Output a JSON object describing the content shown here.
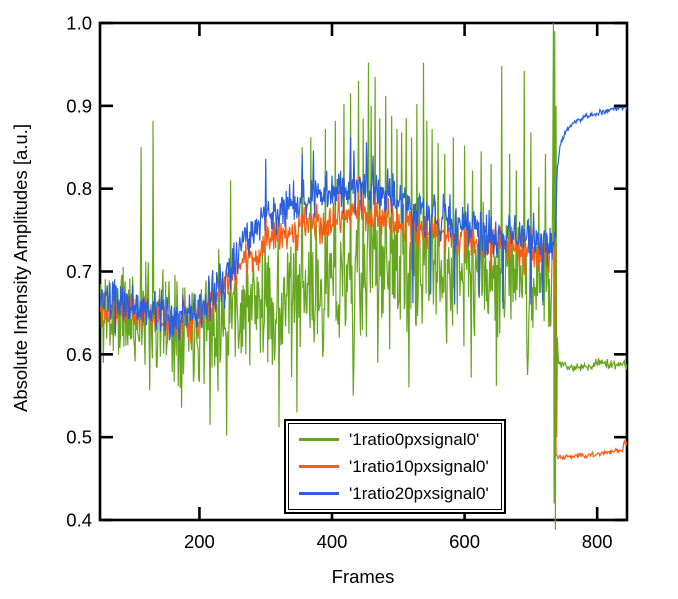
{
  "figure": {
    "background": "#ffffff",
    "axis_color": "#000000"
  },
  "chart_data": {
    "type": "line",
    "title": "",
    "xlabel": "Frames",
    "ylabel": "Absolute Intensity Amplitudes [a.u.]",
    "xlim": [
      50,
      845
    ],
    "ylim": [
      0.4,
      1.0
    ],
    "x_ticks": [
      200,
      400,
      600,
      800
    ],
    "x_tick_labels": [
      "200",
      "400",
      "600",
      "800"
    ],
    "y_ticks": [
      1.0,
      0.9,
      0.8,
      0.7,
      0.6,
      0.5,
      0.4
    ],
    "y_tick_labels": [
      "1.0",
      "0.9",
      "0.8",
      "0.7",
      "0.6",
      "0.5",
      "0.4"
    ],
    "grid": false,
    "legend": {
      "position": "inside-bottom-center",
      "frame": "double-box"
    },
    "sample_step": 1,
    "series": [
      {
        "name": "'1ratio0pxsignal0'",
        "color": "#66A61E",
        "line_width": 1.2,
        "seed": 11,
        "mean_anchors": [
          [
            50,
            0.652
          ],
          [
            100,
            0.645
          ],
          [
            150,
            0.64
          ],
          [
            200,
            0.643
          ],
          [
            250,
            0.652
          ],
          [
            300,
            0.66
          ],
          [
            350,
            0.668
          ],
          [
            400,
            0.68
          ],
          [
            430,
            0.69
          ],
          [
            460,
            0.7
          ],
          [
            490,
            0.702
          ],
          [
            530,
            0.698
          ],
          [
            570,
            0.697
          ],
          [
            610,
            0.698
          ],
          [
            650,
            0.694
          ],
          [
            690,
            0.69
          ],
          [
            720,
            0.686
          ],
          [
            732,
            0.685
          ],
          [
            741,
            0.59
          ],
          [
            750,
            0.586
          ],
          [
            770,
            0.584
          ],
          [
            790,
            0.586
          ],
          [
            805,
            0.592
          ],
          [
            820,
            0.587
          ],
          [
            845,
            0.586
          ]
        ],
        "noise_anchors": [
          [
            50,
            0.052
          ],
          [
            120,
            0.058
          ],
          [
            200,
            0.055
          ],
          [
            300,
            0.055
          ],
          [
            400,
            0.058
          ],
          [
            440,
            0.065
          ],
          [
            560,
            0.065
          ],
          [
            620,
            0.055
          ],
          [
            700,
            0.052
          ],
          [
            731,
            0.05
          ],
          [
            734,
            0.02
          ],
          [
            738,
            0.01
          ],
          [
            742,
            0.004
          ],
          [
            845,
            0.004
          ]
        ],
        "spikes": [
          [
            112,
            0.85
          ],
          [
            130,
            0.882
          ],
          [
            216,
            0.515
          ],
          [
            241,
            0.502
          ],
          [
            247,
            0.81
          ],
          [
            320,
            0.512
          ],
          [
            347,
            0.53
          ],
          [
            355,
            0.85
          ],
          [
            368,
            0.862
          ],
          [
            390,
            0.872
          ],
          [
            405,
            0.882
          ],
          [
            418,
            0.902
          ],
          [
            428,
            0.915
          ],
          [
            432,
            0.55
          ],
          [
            440,
            0.93
          ],
          [
            447,
            0.885
          ],
          [
            455,
            0.952
          ],
          [
            459,
            0.9
          ],
          [
            465,
            0.935
          ],
          [
            472,
            0.885
          ],
          [
            481,
            0.912
          ],
          [
            490,
            0.888
          ],
          [
            498,
            0.872
          ],
          [
            505,
            0.868
          ],
          [
            512,
            0.885
          ],
          [
            516,
            0.56
          ],
          [
            520,
            0.862
          ],
          [
            528,
            0.902
          ],
          [
            538,
            0.952
          ],
          [
            543,
            0.882
          ],
          [
            551,
            0.872
          ],
          [
            560,
            0.855
          ],
          [
            570,
            0.842
          ],
          [
            583,
            0.862
          ],
          [
            600,
            0.852
          ],
          [
            610,
            0.572
          ],
          [
            612,
            0.822
          ],
          [
            625,
            0.845
          ],
          [
            640,
            0.83
          ],
          [
            648,
            0.562
          ],
          [
            656,
            0.948
          ],
          [
            668,
            0.842
          ],
          [
            678,
            0.822
          ],
          [
            690,
            0.942
          ],
          [
            695,
            0.575
          ],
          [
            700,
            0.868
          ],
          [
            712,
            0.802
          ],
          [
            722,
            0.842
          ],
          [
            733,
            0.82
          ],
          [
            734,
            1.0
          ],
          [
            735,
            0.42
          ],
          [
            736,
            0.99
          ],
          [
            737,
            0.385
          ],
          [
            738,
            0.9
          ],
          [
            739,
            0.5
          ],
          [
            740,
            0.62
          ]
        ]
      },
      {
        "name": "'1ratio10pxsignal0'",
        "color": "#F95D12",
        "line_width": 1.2,
        "seed": 22,
        "mean_anchors": [
          [
            50,
            0.66
          ],
          [
            90,
            0.656
          ],
          [
            130,
            0.648
          ],
          [
            165,
            0.637
          ],
          [
            190,
            0.64
          ],
          [
            215,
            0.655
          ],
          [
            245,
            0.69
          ],
          [
            275,
            0.716
          ],
          [
            305,
            0.734
          ],
          [
            340,
            0.748
          ],
          [
            380,
            0.76
          ],
          [
            420,
            0.768
          ],
          [
            450,
            0.77
          ],
          [
            475,
            0.765
          ],
          [
            510,
            0.756
          ],
          [
            545,
            0.748
          ],
          [
            580,
            0.742
          ],
          [
            615,
            0.737
          ],
          [
            650,
            0.733
          ],
          [
            690,
            0.729
          ],
          [
            725,
            0.726
          ],
          [
            735,
            0.724
          ],
          [
            736.5,
            0.7
          ],
          [
            737.5,
            0.478
          ],
          [
            745,
            0.4755
          ],
          [
            765,
            0.477
          ],
          [
            790,
            0.479
          ],
          [
            815,
            0.481
          ],
          [
            835,
            0.4835
          ],
          [
            839,
            0.485
          ],
          [
            841,
            0.494
          ],
          [
            845,
            0.492
          ]
        ],
        "noise_anchors": [
          [
            50,
            0.016
          ],
          [
            730,
            0.016
          ],
          [
            736,
            0.008
          ],
          [
            738,
            0.003
          ],
          [
            745,
            0.0022
          ],
          [
            845,
            0.0022
          ]
        ],
        "spikes": [
          [
            152,
            0.615
          ],
          [
            188,
            0.605
          ],
          [
            300,
            0.792
          ],
          [
            410,
            0.798
          ],
          [
            440,
            0.815
          ],
          [
            465,
            0.806
          ],
          [
            520,
            0.702
          ],
          [
            585,
            0.697
          ],
          [
            640,
            0.7
          ],
          [
            690,
            0.696
          ],
          [
            712,
            0.7
          ],
          [
            727,
            0.698
          ]
        ]
      },
      {
        "name": "'1ratio20pxsignal0'",
        "color": "#2B5FDE",
        "line_width": 1.2,
        "seed": 33,
        "mean_anchors": [
          [
            50,
            0.663
          ],
          [
            90,
            0.66
          ],
          [
            130,
            0.653
          ],
          [
            165,
            0.642
          ],
          [
            190,
            0.645
          ],
          [
            215,
            0.663
          ],
          [
            245,
            0.705
          ],
          [
            275,
            0.745
          ],
          [
            305,
            0.768
          ],
          [
            340,
            0.782
          ],
          [
            380,
            0.792
          ],
          [
            420,
            0.798
          ],
          [
            450,
            0.802
          ],
          [
            475,
            0.796
          ],
          [
            510,
            0.783
          ],
          [
            545,
            0.77
          ],
          [
            580,
            0.762
          ],
          [
            615,
            0.752
          ],
          [
            650,
            0.745
          ],
          [
            690,
            0.74
          ],
          [
            725,
            0.736
          ],
          [
            735,
            0.737
          ],
          [
            737,
            0.74
          ],
          [
            738.5,
            0.79
          ],
          [
            740,
            0.825
          ],
          [
            743,
            0.848
          ],
          [
            748,
            0.862
          ],
          [
            755,
            0.871
          ],
          [
            765,
            0.879
          ],
          [
            780,
            0.886
          ],
          [
            800,
            0.891
          ],
          [
            820,
            0.895
          ],
          [
            845,
            0.899
          ]
        ],
        "noise_anchors": [
          [
            50,
            0.02
          ],
          [
            730,
            0.02
          ],
          [
            736,
            0.012
          ],
          [
            738,
            0.004
          ],
          [
            745,
            0.0028
          ],
          [
            845,
            0.0028
          ]
        ],
        "spikes": [
          [
            170,
            0.62
          ],
          [
            238,
            0.655
          ],
          [
            300,
            0.836
          ],
          [
            355,
            0.842
          ],
          [
            372,
            0.846
          ],
          [
            428,
            0.862
          ],
          [
            433,
            0.846
          ],
          [
            452,
            0.856
          ],
          [
            462,
            0.84
          ],
          [
            522,
            0.662
          ],
          [
            548,
            0.672
          ],
          [
            585,
            0.66
          ],
          [
            622,
            0.668
          ],
          [
            658,
            0.655
          ],
          [
            700,
            0.66
          ],
          [
            718,
            0.664
          ]
        ]
      }
    ]
  }
}
